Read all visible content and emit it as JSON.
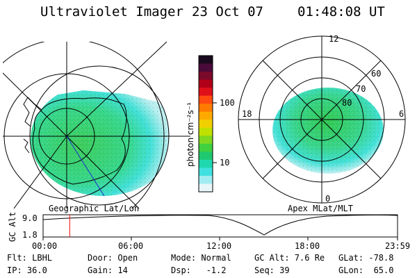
{
  "header": {
    "instrument": "Ultraviolet Imager",
    "date": "23 Oct 07",
    "time": "01:48:08 UT"
  },
  "colorbar": {
    "unit_label": "photon cm⁻²s⁻¹",
    "ticks": [
      "100",
      "10"
    ],
    "colors": [
      "#1a0a1e",
      "#4a0a3a",
      "#7a0a2a",
      "#b00018",
      "#e0101a",
      "#ff4a10",
      "#ff7a00",
      "#ffaa00",
      "#f0d000",
      "#c0e000",
      "#80d820",
      "#40d040",
      "#20c870",
      "#20d8b0",
      "#40e0e0",
      "#a0ecf0",
      "#e8f6fa"
    ]
  },
  "geo_map": {
    "label": "Geographic Lat/Lon"
  },
  "apex_map": {
    "label": "Apex MLat/MLT",
    "mlt_labels": [
      "12",
      "18",
      "6",
      "0"
    ],
    "lat_labels": [
      "60",
      "70",
      "80"
    ]
  },
  "timeline": {
    "axis_label": "GC Alt",
    "y_ticks": [
      "9.0",
      "1.8"
    ],
    "x_ticks": [
      "00:00",
      "06:00",
      "12:00",
      "18:00",
      "23:59"
    ],
    "marker_time": "01:48",
    "marker_color": "#ff0000"
  },
  "status": {
    "filter": "Flt: LBHL",
    "ip": "IP: 36.0",
    "door": "Door: Open",
    "gain": "Gain: 14",
    "mode": "Mode: Normal",
    "dsp": "Dsp:   -1.2",
    "gc_alt": "GC Alt: 7.6 Re",
    "seq": "Seq: 39",
    "glat": "GLat: -78.8",
    "glon": "GLon:  65.0"
  }
}
